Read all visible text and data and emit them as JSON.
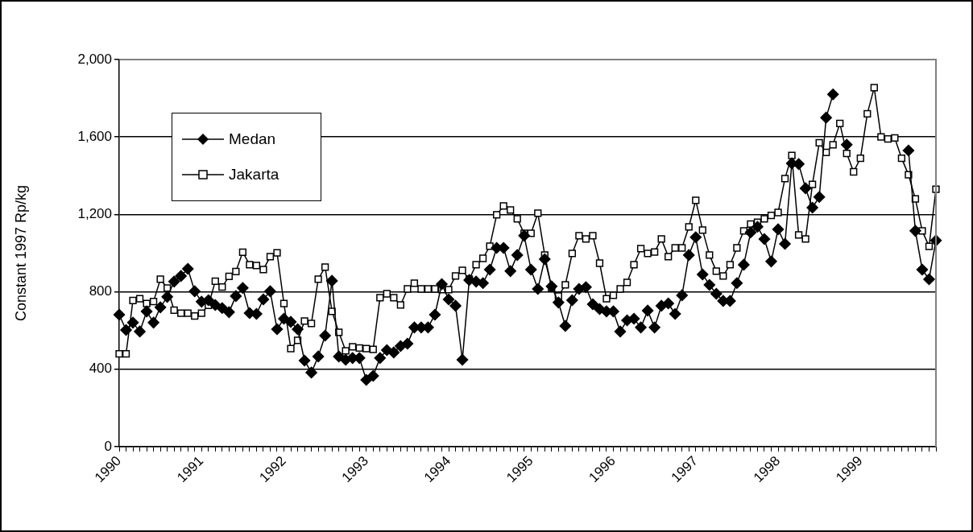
{
  "chart_data": {
    "type": "line",
    "ylabel": "Constant 1997 Rp/kg",
    "categories": [
      "1990",
      null,
      null,
      null,
      null,
      null,
      null,
      null,
      null,
      null,
      null,
      null,
      "1991",
      null,
      null,
      null,
      null,
      null,
      null,
      null,
      null,
      null,
      null,
      null,
      "1992",
      null,
      null,
      null,
      null,
      null,
      null,
      null,
      null,
      null,
      null,
      null,
      "1993",
      null,
      null,
      null,
      null,
      null,
      null,
      null,
      null,
      null,
      null,
      null,
      "1994",
      null,
      null,
      null,
      null,
      null,
      null,
      null,
      null,
      null,
      null,
      null,
      "1995",
      null,
      null,
      null,
      null,
      null,
      null,
      null,
      null,
      null,
      null,
      null,
      "1996",
      null,
      null,
      null,
      null,
      null,
      null,
      null,
      null,
      null,
      null,
      null,
      "1997",
      null,
      null,
      null,
      null,
      null,
      null,
      null,
      null,
      null,
      null,
      null,
      "1998",
      null,
      null,
      null,
      null,
      null,
      null,
      null,
      null,
      null,
      null,
      null,
      "1999",
      null,
      null,
      null,
      null,
      null,
      null,
      null,
      null,
      null,
      null,
      null
    ],
    "series": [
      {
        "name": "Medan",
        "color": "#000000",
        "marker": "diamond",
        "values": [
          682,
          603,
          641,
          595,
          699,
          641,
          720,
          774,
          853,
          882,
          919,
          803,
          749,
          757,
          732,
          716,
          695,
          778,
          820,
          690,
          686,
          761,
          803,
          607,
          661,
          645,
          607,
          445,
          383,
          466,
          574,
          857,
          466,
          449,
          458,
          458,
          345,
          366,
          458,
          499,
          487,
          520,
          532,
          616,
          616,
          616,
          682,
          840,
          761,
          728,
          449,
          861,
          853,
          845,
          915,
          1027,
          1027,
          907,
          990,
          1090,
          915,
          815,
          969,
          828,
          745,
          624,
          757,
          815,
          824,
          736,
          711,
          699,
          699,
          595,
          653,
          661,
          616,
          703,
          616,
          728,
          740,
          686,
          782,
          990,
          1082,
          890,
          836,
          790,
          753,
          753,
          845,
          940,
          1107,
          1136,
          1073,
          957,
          1123,
          1048,
          1464,
          1460,
          1335,
          1235,
          1290,
          1700,
          1820,
          null,
          1560,
          null,
          null,
          null,
          null,
          null,
          null,
          null,
          null,
          1530,
          1115,
          915,
          865,
          1065
        ]
      },
      {
        "name": "Jakarta",
        "color": "#000000",
        "marker": "square",
        "values": [
          480,
          480,
          755,
          765,
          740,
          750,
          865,
          820,
          705,
          690,
          690,
          675,
          690,
          730,
          855,
          825,
          880,
          905,
          1005,
          940,
          936,
          915,
          982,
          1002,
          740,
          507,
          549,
          649,
          637,
          865,
          928,
          699,
          591,
          495,
          516,
          510,
          507,
          503,
          770,
          790,
          770,
          732,
          815,
          845,
          815,
          815,
          815,
          811,
          811,
          882,
          911,
          865,
          940,
          973,
          1036,
          1198,
          1244,
          1223,
          1177,
          1102,
          1102,
          1206,
          990,
          820,
          778,
          836,
          998,
          1090,
          1073,
          1090,
          948,
          765,
          782,
          815,
          849,
          940,
          1023,
          998,
          1006,
          1073,
          982,
          1027,
          1027,
          1136,
          1273,
          1119,
          990,
          907,
          882,
          940,
          1027,
          1115,
          1150,
          1160,
          1177,
          1195,
          1210,
          1385,
          1505,
          1094,
          1073,
          1355,
          1570,
          1520,
          1560,
          1670,
          1515,
          1420,
          1490,
          1720,
          1855,
          1600,
          1590,
          1595,
          1490,
          1405,
          1280,
          1115,
          1035,
          1330
        ]
      }
    ],
    "ylim": [
      0,
      2000
    ],
    "yticks": [
      0,
      400,
      800,
      {
        "value": 1200,
        "label": "1,200"
      },
      {
        "value": 1600,
        "label": "1,600"
      },
      {
        "value": 2000,
        "label": "2,000"
      }
    ],
    "grid": "y",
    "legend": "top left"
  }
}
